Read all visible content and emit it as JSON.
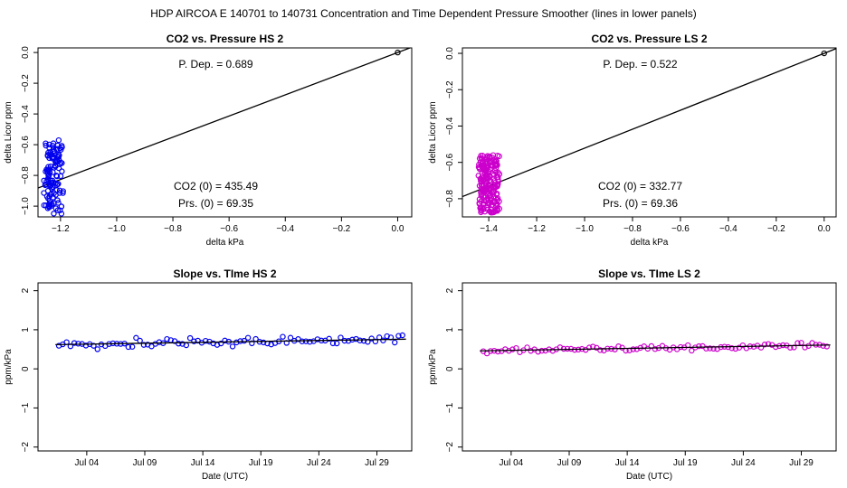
{
  "figure": {
    "title": "HDP   AIRCOA E   140701 to 140731   Concentration and Time Dependent Pressure Smoother (lines in lower panels)"
  },
  "chart_data": [
    {
      "type": "scatter",
      "title": "CO2 vs. Pressure HS 2",
      "xlabel": "delta kPa",
      "ylabel": "delta Licor ppm",
      "xlim": [
        -1.28,
        0.05
      ],
      "ylim": [
        -1.07,
        0.03
      ],
      "xticks": [
        -1.2,
        -1.0,
        -0.8,
        -0.6,
        -0.4,
        -0.2,
        0.0
      ],
      "xtick_labels": [
        "−1.2",
        "−1.0",
        "−0.8",
        "−0.6",
        "−0.4",
        "−0.2",
        "0.0"
      ],
      "yticks": [
        0.0,
        -0.2,
        -0.4,
        -0.6,
        -0.8,
        -1.0
      ],
      "ytick_labels": [
        "0.0",
        "−0.2",
        "−0.4",
        "−0.6",
        "−0.8",
        "−1.0"
      ],
      "color": "#0000ee",
      "cluster": {
        "x_center": -1.225,
        "x_spread": 0.03,
        "y_min": -1.05,
        "y_max": -0.56,
        "n": 120
      },
      "origin_point": [
        0.0,
        0.0
      ],
      "fit_line": {
        "slope": 0.689,
        "intercept": 0.0
      },
      "annotations": {
        "p_dep": "P. Dep. =  0.689",
        "co2_0": "CO2 (0) =  435.49",
        "prs_0": "Prs. (0) =  69.35"
      }
    },
    {
      "type": "scatter",
      "title": "CO2 vs. Pressure LS 2",
      "xlabel": "delta kPa",
      "ylabel": "delta Licor ppm",
      "xlim": [
        -1.51,
        0.05
      ],
      "ylim": [
        -0.9,
        0.03
      ],
      "xticks": [
        -1.4,
        -1.2,
        -1.0,
        -0.8,
        -0.6,
        -0.4,
        -0.2,
        0.0
      ],
      "xtick_labels": [
        "−1.4",
        "−1.2",
        "−1.0",
        "−0.8",
        "−0.6",
        "−0.4",
        "−0.2",
        "0.0"
      ],
      "yticks": [
        0.0,
        -0.2,
        -0.4,
        -0.6,
        -0.8
      ],
      "ytick_labels": [
        "0.0",
        "−0.2",
        "−0.4",
        "−0.6",
        "−0.8"
      ],
      "color": "#cc00cc",
      "cluster": {
        "x_center": -1.4,
        "x_spread": 0.04,
        "y_min": -0.88,
        "y_max": -0.56,
        "n": 200
      },
      "origin_point": [
        0.0,
        0.0
      ],
      "fit_line": {
        "slope": 0.522,
        "intercept": 0.0
      },
      "annotations": {
        "p_dep": "P. Dep. =  0.522",
        "co2_0": "CO2 (0) =  332.77",
        "prs_0": "Prs. (0) =  69.36"
      }
    },
    {
      "type": "scatter",
      "title": "Slope vs. TIme HS 2",
      "xlabel": "Date (UTC)",
      "ylabel": "ppm/kPa",
      "xlim": [
        -1.2,
        31.0
      ],
      "ylim": [
        -2.1,
        2.2
      ],
      "xticks": [
        3,
        8,
        13,
        18,
        23,
        28
      ],
      "xtick_labels": [
        "Jul 04",
        "Jul 09",
        "Jul 14",
        "Jul 19",
        "Jul 24",
        "Jul 29"
      ],
      "yticks": [
        -2,
        -1,
        0,
        1,
        2
      ],
      "ytick_labels": [
        "−2",
        "−1",
        "0",
        "1",
        "2"
      ],
      "color": "#0000ee",
      "points": {
        "day_start": 0.6,
        "day_end": 30.2,
        "n": 90,
        "base": 0.62,
        "trend": 0.005,
        "noise": 0.07
      },
      "trend_line": {
        "day_start": 0.3,
        "day_end": 30.5,
        "y_start": 0.62,
        "y_end": 0.76
      }
    },
    {
      "type": "scatter",
      "title": "Slope vs. TIme LS 2",
      "xlabel": "Date (UTC)",
      "ylabel": "ppm/kPa",
      "xlim": [
        -1.2,
        31.0
      ],
      "ylim": [
        -2.1,
        2.2
      ],
      "xticks": [
        3,
        8,
        13,
        18,
        23,
        28
      ],
      "xtick_labels": [
        "Jul 04",
        "Jul 09",
        "Jul 14",
        "Jul 19",
        "Jul 24",
        "Jul 29"
      ],
      "yticks": [
        -2,
        -1,
        0,
        1,
        2
      ],
      "ytick_labels": [
        "−2",
        "−1",
        "0",
        "1",
        "2"
      ],
      "color": "#cc00cc",
      "points": {
        "day_start": 0.6,
        "day_end": 30.2,
        "n": 95,
        "base": 0.46,
        "trend": 0.005,
        "noise": 0.04
      },
      "trend_line": {
        "day_start": 0.3,
        "day_end": 30.5,
        "y_start": 0.46,
        "y_end": 0.61
      }
    }
  ]
}
